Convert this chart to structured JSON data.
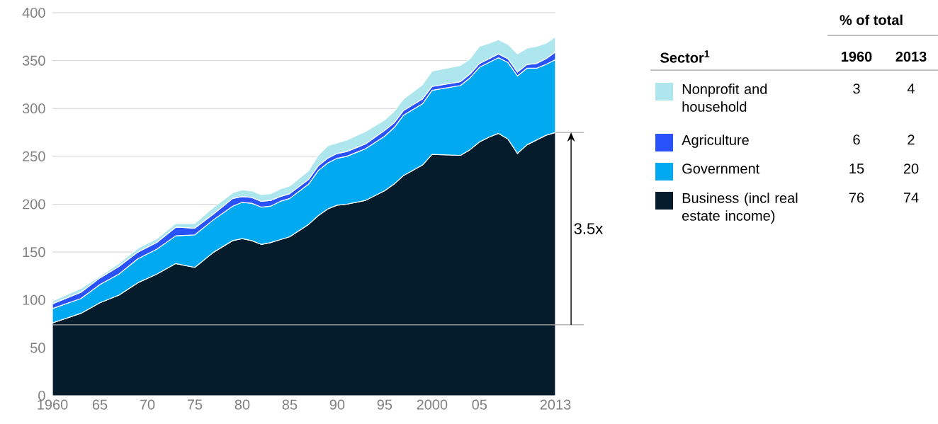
{
  "chart_data": {
    "type": "area",
    "stacked": true,
    "grid": "y",
    "legend": "top right",
    "legend_title": "Sector$^{1}$",
    "x": [
      1960,
      1963,
      1965,
      1967,
      1969,
      1971,
      1973,
      1975,
      1977,
      1979,
      1980,
      1981,
      1982,
      1983,
      1984,
      1985,
      1987,
      1988,
      1989,
      1990,
      1991,
      1993,
      1995,
      1996,
      1997,
      1999,
      2000,
      2003,
      2004,
      2005,
      2006,
      2007,
      2008,
      2009,
      2010,
      2011,
      2012,
      2013
    ],
    "series": [
      {
        "name": "Business (incl real estate income)",
        "color": "#051c2c",
        "values": [
          76,
          86,
          97,
          105,
          118,
          127,
          138,
          134,
          150,
          162,
          164,
          162,
          158,
          160,
          163,
          166,
          179,
          188,
          195,
          199,
          200,
          204,
          214,
          221,
          230,
          241,
          252,
          251,
          257,
          265,
          270,
          274,
          268,
          253,
          262,
          267,
          272,
          275
        ]
      },
      {
        "name": "Government",
        "color": "#00a9f0",
        "values": [
          15,
          15.5,
          19,
          22,
          25,
          26,
          29,
          34,
          34,
          36,
          38,
          39,
          39,
          38,
          40,
          40,
          42,
          47,
          48,
          49,
          50,
          54,
          57,
          59,
          63,
          64,
          67,
          73,
          75,
          78,
          78,
          79,
          80,
          81,
          80,
          75,
          74,
          76
        ]
      },
      {
        "name": "Agriculture",
        "color": "#2a52fb",
        "values": [
          5,
          6.5,
          7,
          8,
          7,
          7,
          9,
          7,
          6,
          8,
          6,
          6,
          6,
          6,
          5,
          5,
          5,
          5,
          5,
          5,
          5,
          5,
          6,
          5,
          5,
          5,
          4,
          4,
          4,
          4,
          4,
          4,
          4,
          4,
          4,
          5,
          6,
          8
        ]
      },
      {
        "name": "Nonprofit and household",
        "color": "#aee6ee",
        "values": [
          3,
          4,
          2,
          3,
          4,
          4,
          4,
          5,
          7,
          6,
          7,
          7,
          7,
          7,
          8,
          8,
          9,
          11,
          13,
          11,
          12,
          13,
          11,
          12,
          12,
          15,
          16,
          17,
          16,
          18,
          16,
          15,
          15,
          19,
          17,
          18,
          16,
          16
        ]
      }
    ],
    "xlim": [
      1960,
      2013
    ],
    "xticks": [
      1960,
      {
        "value": 1965,
        "label": "65"
      },
      {
        "value": 1970,
        "label": "70"
      },
      {
        "value": 1975,
        "label": "75"
      },
      {
        "value": 1980,
        "label": "80"
      },
      {
        "value": 1985,
        "label": "85"
      },
      {
        "value": 1990,
        "label": "90"
      },
      {
        "value": 1995,
        "label": "95"
      },
      2000,
      {
        "value": 2005,
        "label": "05"
      },
      2013
    ],
    "ylim": [
      0,
      400
    ],
    "yticks": [
      0,
      50,
      100,
      150,
      200,
      250,
      300,
      350,
      400
    ],
    "ref_lines": [
      {
        "axis": "y",
        "value": 74,
        "color": "#aaaaaa"
      }
    ],
    "annotations": [
      "% of total",
      "1960",
      "2013",
      "3",
      "4",
      "6",
      "2",
      "15",
      "20",
      "76",
      "74",
      "3.5x"
    ]
  }
}
